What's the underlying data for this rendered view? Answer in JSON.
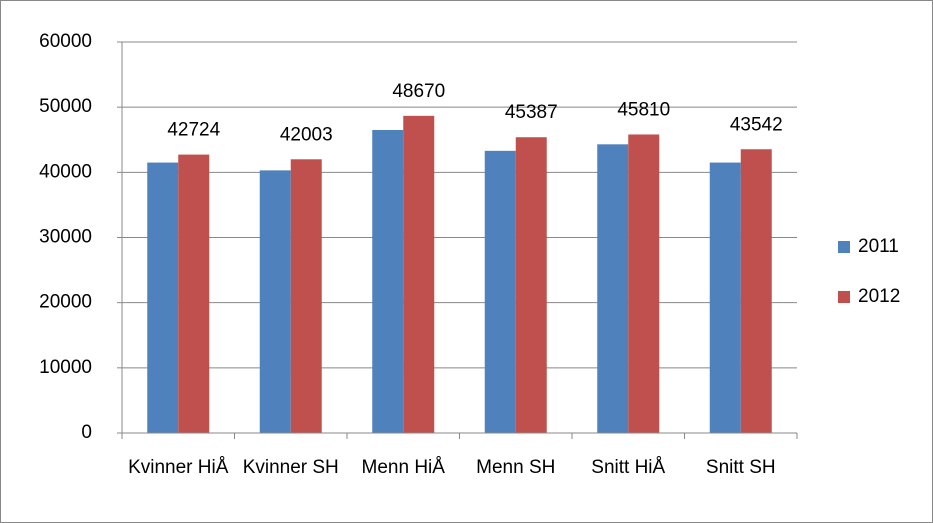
{
  "chart_data": {
    "type": "bar",
    "categories": [
      "Kvinner HiÅ",
      "Kvinner SH",
      "Menn HiÅ",
      "Menn SH",
      "Snitt HiÅ",
      "Snitt SH"
    ],
    "series": [
      {
        "name": "2011",
        "color": "#4f81bd",
        "values": [
          41500,
          40300,
          46500,
          43300,
          44300,
          41500
        ]
      },
      {
        "name": "2012",
        "color": "#c0504d",
        "values": [
          42724,
          42003,
          48670,
          45387,
          45810,
          43542
        ],
        "labels": true
      }
    ],
    "ylim": [
      0,
      60000
    ],
    "yticks": [
      0,
      10000,
      20000,
      30000,
      40000,
      50000,
      60000
    ],
    "grid": true,
    "legend": "right"
  }
}
